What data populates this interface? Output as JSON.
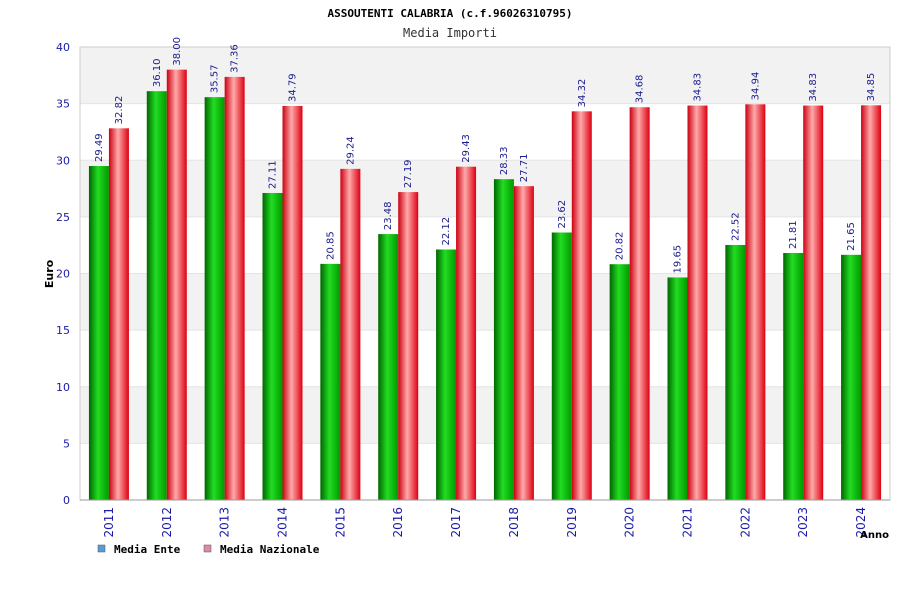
{
  "chart_data": {
    "type": "bar",
    "title": "ASSOUTENTI CALABRIA (c.f.96026310795)",
    "subtitle": "Media Importi",
    "xlabel": "Anno",
    "ylabel": "Euro",
    "ylim": [
      0,
      40
    ],
    "yticks": [
      0,
      5,
      10,
      15,
      20,
      25,
      30,
      35,
      40
    ],
    "categories": [
      "2011",
      "2012",
      "2013",
      "2014",
      "2015",
      "2016",
      "2017",
      "2018",
      "2019",
      "2020",
      "2021",
      "2022",
      "2023",
      "2024"
    ],
    "series": [
      {
        "name": "Media Ente",
        "color": "#00bb00",
        "legend_color": "#5b9bd5",
        "values": [
          29.49,
          36.1,
          35.57,
          27.11,
          20.85,
          23.48,
          22.12,
          28.33,
          23.62,
          20.82,
          19.65,
          22.52,
          21.81,
          21.65
        ]
      },
      {
        "name": "Media Nazionale",
        "color": "#ee1122",
        "legend_color": "#e088a8",
        "values": [
          32.82,
          38.0,
          37.36,
          34.79,
          29.24,
          27.19,
          29.43,
          27.71,
          34.32,
          34.68,
          34.83,
          34.94,
          34.83,
          34.85
        ]
      }
    ],
    "grid": true,
    "legend_position": "bottom-left"
  }
}
